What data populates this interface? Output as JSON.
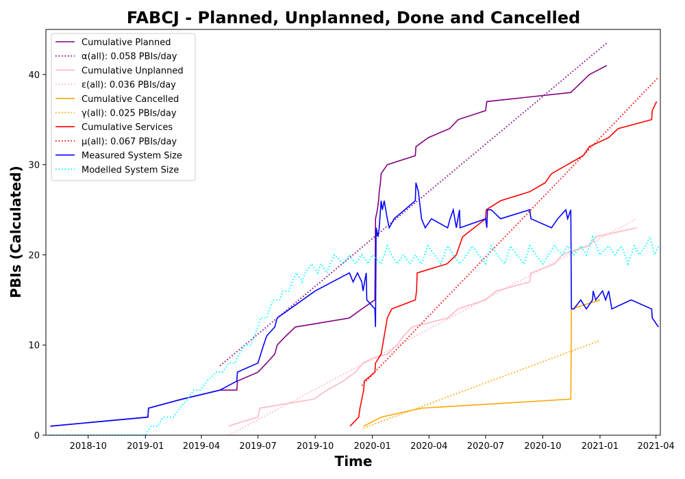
{
  "chart_data": {
    "type": "line",
    "title": "FABCJ - Planned, Unplanned, Done  and Cancelled",
    "xlabel": "Time",
    "ylabel": "PBIs (Calculated)",
    "xlim": [
      "2018-07-25",
      "2021-04-08"
    ],
    "ylim": [
      0,
      45
    ],
    "x_ticks": [
      "2018-10",
      "2019-01",
      "2019-04",
      "2019-07",
      "2019-10",
      "2020-01",
      "2020-04",
      "2020-07",
      "2020-10",
      "2021-01",
      "2021-04"
    ],
    "y_ticks": [
      0,
      10,
      20,
      30,
      40
    ],
    "grid": false,
    "legend": "top-left",
    "series": [
      {
        "name": "Cumulative Planned",
        "color": "#800080",
        "style": "solid",
        "points": [
          [
            "2018-08-01",
            1
          ],
          [
            "2019-01-05",
            2
          ],
          [
            "2019-01-06",
            3
          ],
          [
            "2019-03-01",
            4
          ],
          [
            "2019-05-01",
            5
          ],
          [
            "2019-05-28",
            5
          ],
          [
            "2019-05-29",
            6
          ],
          [
            "2019-07-01",
            7
          ],
          [
            "2019-07-15",
            8
          ],
          [
            "2019-07-28",
            9
          ],
          [
            "2019-08-01",
            10
          ],
          [
            "2019-08-15",
            11
          ],
          [
            "2019-08-30",
            12
          ],
          [
            "2019-11-25",
            13
          ],
          [
            "2019-12-15",
            14
          ],
          [
            "2020-01-05",
            15
          ],
          [
            "2020-01-06",
            24
          ],
          [
            "2020-01-09",
            25
          ],
          [
            "2020-01-11",
            26
          ],
          [
            "2020-01-12",
            27
          ],
          [
            "2020-01-14",
            28
          ],
          [
            "2020-01-15",
            29
          ],
          [
            "2020-01-25",
            30
          ],
          [
            "2020-03-10",
            31
          ],
          [
            "2020-03-11",
            32
          ],
          [
            "2020-03-31",
            33
          ],
          [
            "2020-05-04",
            34
          ],
          [
            "2020-05-18",
            35
          ],
          [
            "2020-07-01",
            36
          ],
          [
            "2020-07-03",
            37
          ],
          [
            "2020-11-15",
            38
          ],
          [
            "2020-12-15",
            40
          ],
          [
            "2021-01-12",
            41
          ]
        ]
      },
      {
        "name": "α(all): 0.058 PBIs/day",
        "color": "#800080",
        "style": "dotted",
        "points": [
          [
            "2019-05-01",
            7.7
          ],
          [
            "2021-01-12",
            43.5
          ]
        ]
      },
      {
        "name": "Cumulative Unplanned",
        "color": "#ffb6c1",
        "style": "solid",
        "points": [
          [
            "2019-05-15",
            1
          ],
          [
            "2019-06-01",
            1.4
          ],
          [
            "2019-07-01",
            2
          ],
          [
            "2019-07-04",
            3
          ],
          [
            "2019-09-29",
            4
          ],
          [
            "2019-10-20",
            5
          ],
          [
            "2019-11-15",
            6
          ],
          [
            "2019-12-05",
            7
          ],
          [
            "2019-12-17",
            8
          ],
          [
            "2020-01-01",
            8.5
          ],
          [
            "2020-01-25",
            9
          ],
          [
            "2020-02-10",
            10
          ],
          [
            "2020-02-20",
            11
          ],
          [
            "2020-03-05",
            12
          ],
          [
            "2020-05-01",
            13
          ],
          [
            "2020-05-18",
            14
          ],
          [
            "2020-07-01",
            15
          ],
          [
            "2020-07-18",
            16
          ],
          [
            "2020-09-10",
            17
          ],
          [
            "2020-09-12",
            18
          ],
          [
            "2020-10-20",
            19
          ],
          [
            "2020-11-01",
            20
          ],
          [
            "2020-11-20",
            20.5
          ],
          [
            "2020-12-15",
            21
          ],
          [
            "2020-12-25",
            22
          ],
          [
            "2021-03-01",
            23
          ]
        ]
      },
      {
        "name": "ε(all): 0.036 PBIs/day",
        "color": "#ffb6c1",
        "style": "dotted",
        "points": [
          [
            "2019-05-15",
            0
          ],
          [
            "2021-03-01",
            24
          ]
        ]
      },
      {
        "name": "Cumulative Cancelled",
        "color": "#ffa500",
        "style": "solid",
        "points": [
          [
            "2019-12-18",
            1
          ],
          [
            "2020-01-15",
            2
          ],
          [
            "2020-03-20",
            3
          ],
          [
            "2020-11-15",
            4
          ],
          [
            "2020-11-16",
            14
          ],
          [
            "2021-01-01",
            15
          ]
        ]
      },
      {
        "name": "γ(all): 0.025 PBIs/day",
        "color": "#ffa500",
        "style": "dotted",
        "points": [
          [
            "2019-12-18",
            0.8
          ],
          [
            "2021-01-01",
            10.5
          ]
        ]
      },
      {
        "name": "Cumulative Services",
        "color": "#ff0000",
        "style": "solid",
        "points": [
          [
            "2019-11-26",
            1
          ],
          [
            "2019-12-10",
            2
          ],
          [
            "2019-12-12",
            3
          ],
          [
            "2019-12-18",
            5
          ],
          [
            "2019-12-19",
            6
          ],
          [
            "2020-01-05",
            7
          ],
          [
            "2020-01-06",
            8
          ],
          [
            "2020-01-15",
            9
          ],
          [
            "2020-01-20",
            11
          ],
          [
            "2020-01-25",
            13
          ],
          [
            "2020-02-01",
            14
          ],
          [
            "2020-03-10",
            15
          ],
          [
            "2020-03-12",
            16
          ],
          [
            "2020-03-13",
            18
          ],
          [
            "2020-04-30",
            19
          ],
          [
            "2020-05-15",
            20
          ],
          [
            "2020-05-25",
            22
          ],
          [
            "2020-07-01",
            24
          ],
          [
            "2020-07-02",
            25
          ],
          [
            "2020-07-25",
            26
          ],
          [
            "2020-09-10",
            27
          ],
          [
            "2020-10-05",
            28
          ],
          [
            "2020-10-15",
            29
          ],
          [
            "2020-12-05",
            31
          ],
          [
            "2020-12-15",
            32
          ],
          [
            "2021-01-15",
            33
          ],
          [
            "2021-01-30",
            34
          ],
          [
            "2021-03-25",
            35
          ],
          [
            "2021-03-26",
            36
          ],
          [
            "2021-04-02",
            37
          ]
        ]
      },
      {
        "name": "μ(all): 0.067 PBIs/day",
        "color": "#ff0000",
        "style": "dotted",
        "points": [
          [
            "2019-12-15",
            5.5
          ],
          [
            "2021-04-05",
            39.7
          ]
        ]
      },
      {
        "name": "Measured System Size",
        "color": "#0000ff",
        "style": "solid",
        "points": [
          [
            "2018-08-01",
            1
          ],
          [
            "2019-01-05",
            2
          ],
          [
            "2019-01-06",
            3
          ],
          [
            "2019-03-01",
            4
          ],
          [
            "2019-05-01",
            5
          ],
          [
            "2019-05-28",
            6
          ],
          [
            "2019-05-29",
            7
          ],
          [
            "2019-07-01",
            8
          ],
          [
            "2019-07-10",
            10
          ],
          [
            "2019-07-15",
            11
          ],
          [
            "2019-07-28",
            12
          ],
          [
            "2019-08-01",
            13
          ],
          [
            "2019-10-01",
            16
          ],
          [
            "2019-11-25",
            18
          ],
          [
            "2019-12-01",
            17
          ],
          [
            "2019-12-08",
            18
          ],
          [
            "2019-12-15",
            17
          ],
          [
            "2019-12-17",
            16
          ],
          [
            "2019-12-22",
            18
          ],
          [
            "2019-12-23",
            15
          ],
          [
            "2020-01-05",
            14
          ],
          [
            "2020-01-06",
            12
          ],
          [
            "2020-01-07",
            23
          ],
          [
            "2020-01-10",
            22
          ],
          [
            "2020-01-12",
            23
          ],
          [
            "2020-01-15",
            26
          ],
          [
            "2020-01-17",
            25
          ],
          [
            "2020-01-20",
            26
          ],
          [
            "2020-01-25",
            24
          ],
          [
            "2020-01-28",
            23
          ],
          [
            "2020-02-05",
            24
          ],
          [
            "2020-03-10",
            26
          ],
          [
            "2020-03-11",
            28
          ],
          [
            "2020-03-15",
            27
          ],
          [
            "2020-03-20",
            24
          ],
          [
            "2020-03-26",
            23
          ],
          [
            "2020-04-05",
            24
          ],
          [
            "2020-05-01",
            23
          ],
          [
            "2020-05-05",
            24
          ],
          [
            "2020-05-10",
            25
          ],
          [
            "2020-05-15",
            23
          ],
          [
            "2020-05-20",
            25
          ],
          [
            "2020-05-21",
            23
          ],
          [
            "2020-07-01",
            24
          ],
          [
            "2020-07-03",
            23
          ],
          [
            "2020-07-04",
            25
          ],
          [
            "2020-07-10",
            25
          ],
          [
            "2020-07-25",
            24
          ],
          [
            "2020-09-10",
            25
          ],
          [
            "2020-09-12",
            24
          ],
          [
            "2020-10-15",
            23
          ],
          [
            "2020-10-25",
            24
          ],
          [
            "2020-11-07",
            25
          ],
          [
            "2020-11-10",
            24
          ],
          [
            "2020-11-15",
            25
          ],
          [
            "2020-11-16",
            14
          ],
          [
            "2020-11-20",
            14
          ],
          [
            "2020-12-01",
            15
          ],
          [
            "2020-12-10",
            14
          ],
          [
            "2020-12-20",
            15
          ],
          [
            "2020-12-21",
            16
          ],
          [
            "2020-12-25",
            15
          ],
          [
            "2021-01-05",
            16
          ],
          [
            "2021-01-10",
            15
          ],
          [
            "2021-01-15",
            16
          ],
          [
            "2021-01-20",
            14
          ],
          [
            "2021-02-20",
            15
          ],
          [
            "2021-03-25",
            14
          ],
          [
            "2021-03-26",
            13
          ],
          [
            "2021-04-05",
            12
          ]
        ]
      },
      {
        "name": "Modelled System Size",
        "color": "#00ffff",
        "style": "dotted",
        "points": [
          [
            "2018-08-01",
            0
          ],
          [
            "2019-01-01",
            0
          ],
          [
            "2019-01-10",
            1
          ],
          [
            "2019-01-20",
            1
          ],
          [
            "2019-01-30",
            2
          ],
          [
            "2019-02-15",
            2
          ],
          [
            "2019-02-25",
            3
          ],
          [
            "2019-03-10",
            4
          ],
          [
            "2019-03-20",
            5
          ],
          [
            "2019-03-30",
            5
          ],
          [
            "2019-04-10",
            6
          ],
          [
            "2019-04-25",
            7
          ],
          [
            "2019-05-05",
            7
          ],
          [
            "2019-05-15",
            8
          ],
          [
            "2019-05-25",
            8
          ],
          [
            "2019-06-01",
            9
          ],
          [
            "2019-06-10",
            10
          ],
          [
            "2019-06-20",
            10
          ],
          [
            "2019-06-25",
            11
          ],
          [
            "2019-07-01",
            12
          ],
          [
            "2019-07-05",
            13
          ],
          [
            "2019-07-15",
            13
          ],
          [
            "2019-07-20",
            14
          ],
          [
            "2019-07-25",
            15
          ],
          [
            "2019-08-05",
            15
          ],
          [
            "2019-08-10",
            16
          ],
          [
            "2019-08-20",
            16
          ],
          [
            "2019-08-25",
            17
          ],
          [
            "2019-09-01",
            18
          ],
          [
            "2019-09-10",
            17
          ],
          [
            "2019-09-15",
            18
          ],
          [
            "2019-09-25",
            19
          ],
          [
            "2019-10-05",
            18
          ],
          [
            "2019-10-10",
            19
          ],
          [
            "2019-10-20",
            18
          ],
          [
            "2019-10-25",
            19
          ],
          [
            "2019-11-01",
            20
          ],
          [
            "2019-11-15",
            19
          ],
          [
            "2019-11-25",
            20
          ],
          [
            "2019-12-05",
            19
          ],
          [
            "2019-12-15",
            20
          ],
          [
            "2019-12-25",
            19
          ],
          [
            "2020-01-01",
            20
          ],
          [
            "2020-01-15",
            19
          ],
          [
            "2020-01-25",
            21
          ],
          [
            "2020-02-01",
            20
          ],
          [
            "2020-02-10",
            19
          ],
          [
            "2020-02-20",
            20
          ],
          [
            "2020-03-01",
            19
          ],
          [
            "2020-03-10",
            20
          ],
          [
            "2020-03-20",
            19
          ],
          [
            "2020-03-30",
            21
          ],
          [
            "2020-04-10",
            20
          ],
          [
            "2020-04-20",
            19
          ],
          [
            "2020-05-01",
            21
          ],
          [
            "2020-05-10",
            20
          ],
          [
            "2020-05-20",
            19
          ],
          [
            "2020-06-01",
            20
          ],
          [
            "2020-06-10",
            21
          ],
          [
            "2020-06-20",
            20
          ],
          [
            "2020-07-01",
            19
          ],
          [
            "2020-07-10",
            21
          ],
          [
            "2020-07-20",
            20
          ],
          [
            "2020-08-01",
            19
          ],
          [
            "2020-08-10",
            21
          ],
          [
            "2020-08-20",
            20
          ],
          [
            "2020-09-01",
            19
          ],
          [
            "2020-09-10",
            21
          ],
          [
            "2020-09-20",
            20
          ],
          [
            "2020-10-01",
            19
          ],
          [
            "2020-10-10",
            20
          ],
          [
            "2020-10-20",
            21
          ],
          [
            "2020-11-01",
            20
          ],
          [
            "2020-11-10",
            21
          ],
          [
            "2020-11-20",
            20
          ],
          [
            "2020-12-01",
            21
          ],
          [
            "2020-12-10",
            20
          ],
          [
            "2020-12-20",
            22
          ],
          [
            "2021-01-01",
            20
          ],
          [
            "2021-01-15",
            21
          ],
          [
            "2021-01-25",
            20
          ],
          [
            "2021-02-05",
            21
          ],
          [
            "2021-02-15",
            19
          ],
          [
            "2021-02-25",
            21
          ],
          [
            "2021-03-05",
            20
          ],
          [
            "2021-03-15",
            21
          ],
          [
            "2021-03-22",
            22
          ],
          [
            "2021-03-30",
            20
          ],
          [
            "2021-04-05",
            21
          ]
        ]
      }
    ]
  }
}
